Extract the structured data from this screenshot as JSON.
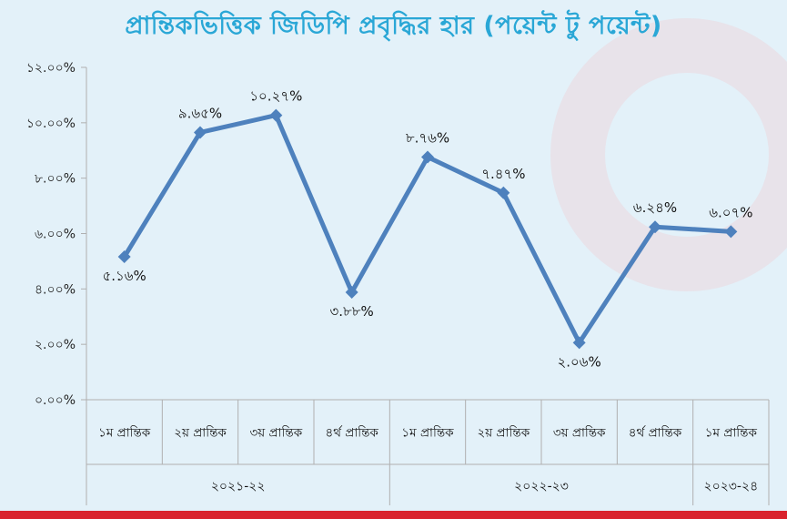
{
  "chart_data": {
    "type": "line",
    "title": "প্রান্তিকভিত্তিক জিডিপি প্রবৃদ্ধির হার (পয়েন্ট টু পয়েন্ট)",
    "categories": [
      "১ম প্রান্তিক",
      "২য় প্রান্তিক",
      "৩য় প্রান্তিক",
      "৪র্থ প্রান্তিক",
      "১ম প্রান্তিক",
      "২য় প্রান্তিক",
      "৩য় প্রান্তিক",
      "৪র্থ প্রান্তিক",
      "১ম প্রান্তিক"
    ],
    "groups": [
      {
        "label": "২০২১-২২",
        "count": 4
      },
      {
        "label": "২০২২-২৩",
        "count": 4
      },
      {
        "label": "২০২৩-২৪",
        "count": 1
      }
    ],
    "values": [
      5.16,
      9.65,
      10.27,
      3.88,
      8.76,
      7.47,
      2.06,
      6.24,
      6.07
    ],
    "data_labels": [
      "৫.১৬%",
      "৯.৬৫%",
      "১০.২৭%",
      "৩.৮৮%",
      "৮.৭৬%",
      "৭.৪৭%",
      "২.০৬%",
      "৬.২৪%",
      "৬.০৭%"
    ],
    "label_position": [
      "below",
      "above",
      "above",
      "below",
      "above",
      "above",
      "below",
      "above",
      "above"
    ],
    "yticks": [
      0,
      2,
      4,
      6,
      8,
      10,
      12
    ],
    "ytick_labels": [
      "০.০০%",
      "২.০০%",
      "৪.০০%",
      "৬.০০%",
      "৮.০০%",
      "১০.০০%",
      "১২.০০%"
    ],
    "ylim": [
      0,
      12
    ],
    "grid": false,
    "colors": {
      "line": "#4e81bd",
      "title": "#2aa7d6",
      "axis": "#b0b0b0",
      "accent_bar": "#d9232d"
    }
  }
}
